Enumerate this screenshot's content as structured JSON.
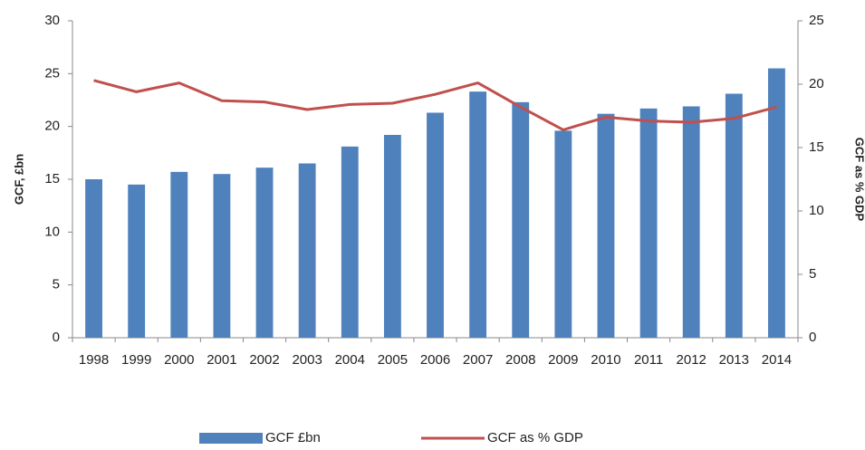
{
  "chart_data": {
    "type": "bar_line",
    "categories": [
      "1998",
      "1999",
      "2000",
      "2001",
      "2002",
      "2003",
      "2004",
      "2005",
      "2006",
      "2007",
      "2008",
      "2009",
      "2010",
      "2011",
      "2012",
      "2013",
      "2014"
    ],
    "series": [
      {
        "name": "GCF £bn",
        "type": "bar",
        "axis": "y",
        "color": "#4f81bd",
        "values": [
          15.0,
          14.5,
          15.7,
          15.5,
          16.1,
          16.5,
          18.1,
          19.2,
          21.3,
          23.3,
          22.3,
          19.6,
          21.2,
          21.7,
          21.9,
          23.1,
          25.5
        ]
      },
      {
        "name": "GCF as % GDP",
        "type": "line",
        "axis": "y2",
        "color": "#c0504d",
        "values": [
          20.3,
          19.4,
          20.1,
          18.7,
          18.6,
          18.0,
          18.4,
          18.5,
          19.2,
          20.1,
          18.2,
          16.4,
          17.4,
          17.1,
          17.0,
          17.3,
          18.2
        ]
      }
    ],
    "y_label": "GCF, £bn",
    "y2_label": "GCF as % GDP",
    "ylim": [
      0,
      30
    ],
    "yticks": [
      0,
      5,
      10,
      15,
      20,
      25,
      30
    ],
    "y2lim": [
      0,
      25
    ],
    "y2ticks": [
      0,
      5,
      10,
      15,
      20,
      25
    ],
    "legend": "bottom"
  }
}
